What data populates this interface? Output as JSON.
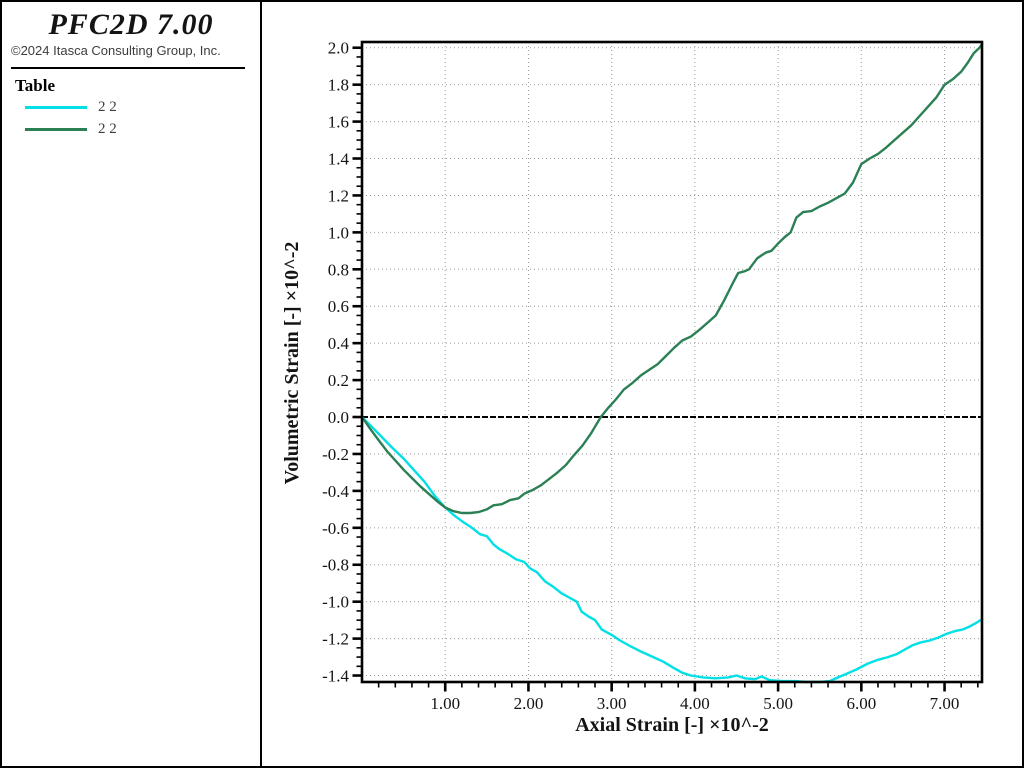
{
  "header": {
    "title": "PFC2D 7.00",
    "copyright": "©2024 Itasca Consulting Group, Inc."
  },
  "legend": {
    "heading": "Table",
    "items": [
      {
        "label": "2 2",
        "color": "#00e0e6"
      },
      {
        "label": "2 2",
        "color": "#2b8054"
      }
    ]
  },
  "colors": {
    "frame": "#000000",
    "grid": "#9a9a9a",
    "zero_line": "#000000",
    "background": "#ffffff"
  },
  "chart_data": {
    "type": "line",
    "title": "",
    "xlabel": "Axial Strain [-] ×10^-2",
    "ylabel": "Volumetric Strain [-] ×10^-2",
    "xlim": [
      0,
      7.45
    ],
    "ylim": [
      -1.435,
      2.031
    ],
    "grid": "dotted",
    "zero_line": true,
    "legend_position": "left-panel",
    "x_major_ticks": [
      1,
      2,
      3,
      4,
      5,
      6,
      7
    ],
    "x_tick_labels": [
      "1.00",
      "2.00",
      "3.00",
      "4.00",
      "5.00",
      "6.00",
      "7.00"
    ],
    "x_minor_step": 0.2,
    "y_major_ticks": [
      2.0,
      1.8,
      1.6,
      1.4,
      1.2,
      1.0,
      0.8,
      0.6,
      0.4,
      0.2,
      0.0,
      -0.2,
      -0.4,
      -0.6,
      -0.8,
      -1.0,
      -1.2,
      -1.4
    ],
    "y_tick_labels": [
      "2.0",
      "1.8",
      "1.6",
      "1.4",
      "1.2",
      "1.0",
      "0.8",
      "0.6",
      "0.4",
      "0.2",
      "0.0",
      "-0.2",
      "-0.4",
      "-0.6",
      "-0.8",
      "-1.0",
      "-1.2",
      "-1.4"
    ],
    "y_minor_step": 0.05,
    "series": [
      {
        "name": "2 2",
        "color": "#00e0e6",
        "points": [
          [
            0,
            0
          ],
          [
            0.1,
            -0.045
          ],
          [
            0.22,
            -0.1
          ],
          [
            0.35,
            -0.16
          ],
          [
            0.5,
            -0.225
          ],
          [
            0.62,
            -0.285
          ],
          [
            0.75,
            -0.35
          ],
          [
            0.88,
            -0.43
          ],
          [
            1,
            -0.49
          ],
          [
            1.1,
            -0.53
          ],
          [
            1.22,
            -0.57
          ],
          [
            1.32,
            -0.6
          ],
          [
            1.42,
            -0.635
          ],
          [
            1.5,
            -0.645
          ],
          [
            1.58,
            -0.69
          ],
          [
            1.65,
            -0.715
          ],
          [
            1.75,
            -0.74
          ],
          [
            1.85,
            -0.77
          ],
          [
            1.95,
            -0.785
          ],
          [
            2.02,
            -0.82
          ],
          [
            2.1,
            -0.84
          ],
          [
            2.2,
            -0.89
          ],
          [
            2.3,
            -0.92
          ],
          [
            2.4,
            -0.955
          ],
          [
            2.5,
            -0.98
          ],
          [
            2.58,
            -1
          ],
          [
            2.64,
            -1.055
          ],
          [
            2.72,
            -1.08
          ],
          [
            2.8,
            -1.1
          ],
          [
            2.88,
            -1.15
          ],
          [
            3,
            -1.18
          ],
          [
            3.1,
            -1.21
          ],
          [
            3.22,
            -1.24
          ],
          [
            3.35,
            -1.27
          ],
          [
            3.5,
            -1.3
          ],
          [
            3.62,
            -1.325
          ],
          [
            3.75,
            -1.36
          ],
          [
            3.85,
            -1.385
          ],
          [
            3.95,
            -1.4
          ],
          [
            4.1,
            -1.41
          ],
          [
            4.25,
            -1.415
          ],
          [
            4.4,
            -1.41
          ],
          [
            4.5,
            -1.4
          ],
          [
            4.6,
            -1.415
          ],
          [
            4.72,
            -1.42
          ],
          [
            4.8,
            -1.405
          ],
          [
            4.9,
            -1.425
          ],
          [
            5.05,
            -1.43
          ],
          [
            5.2,
            -1.43
          ],
          [
            5.35,
            -1.435
          ],
          [
            5.5,
            -1.435
          ],
          [
            5.62,
            -1.43
          ],
          [
            5.72,
            -1.41
          ],
          [
            5.85,
            -1.385
          ],
          [
            5.95,
            -1.365
          ],
          [
            6.08,
            -1.335
          ],
          [
            6.2,
            -1.315
          ],
          [
            6.32,
            -1.3
          ],
          [
            6.42,
            -1.285
          ],
          [
            6.52,
            -1.26
          ],
          [
            6.62,
            -1.235
          ],
          [
            6.72,
            -1.22
          ],
          [
            6.82,
            -1.21
          ],
          [
            6.92,
            -1.195
          ],
          [
            7.02,
            -1.175
          ],
          [
            7.12,
            -1.16
          ],
          [
            7.22,
            -1.15
          ],
          [
            7.3,
            -1.135
          ],
          [
            7.38,
            -1.115
          ],
          [
            7.45,
            -1.095
          ]
        ]
      },
      {
        "name": "2 2",
        "color": "#2b8054",
        "points": [
          [
            0,
            0
          ],
          [
            0.1,
            -0.065
          ],
          [
            0.2,
            -0.125
          ],
          [
            0.3,
            -0.185
          ],
          [
            0.4,
            -0.235
          ],
          [
            0.5,
            -0.285
          ],
          [
            0.6,
            -0.33
          ],
          [
            0.7,
            -0.375
          ],
          [
            0.8,
            -0.415
          ],
          [
            0.9,
            -0.455
          ],
          [
            1,
            -0.49
          ],
          [
            1.1,
            -0.51
          ],
          [
            1.2,
            -0.52
          ],
          [
            1.3,
            -0.52
          ],
          [
            1.4,
            -0.515
          ],
          [
            1.5,
            -0.5
          ],
          [
            1.58,
            -0.478
          ],
          [
            1.68,
            -0.472
          ],
          [
            1.78,
            -0.45
          ],
          [
            1.88,
            -0.44
          ],
          [
            1.95,
            -0.415
          ],
          [
            2.05,
            -0.395
          ],
          [
            2.15,
            -0.37
          ],
          [
            2.25,
            -0.335
          ],
          [
            2.35,
            -0.3
          ],
          [
            2.45,
            -0.26
          ],
          [
            2.55,
            -0.205
          ],
          [
            2.65,
            -0.155
          ],
          [
            2.75,
            -0.09
          ],
          [
            2.87,
            0
          ],
          [
            2.95,
            0.045
          ],
          [
            3.05,
            0.095
          ],
          [
            3.15,
            0.15
          ],
          [
            3.25,
            0.185
          ],
          [
            3.35,
            0.225
          ],
          [
            3.45,
            0.255
          ],
          [
            3.55,
            0.285
          ],
          [
            3.65,
            0.33
          ],
          [
            3.75,
            0.375
          ],
          [
            3.85,
            0.415
          ],
          [
            3.95,
            0.435
          ],
          [
            4.05,
            0.47
          ],
          [
            4.15,
            0.51
          ],
          [
            4.25,
            0.55
          ],
          [
            4.35,
            0.63
          ],
          [
            4.45,
            0.72
          ],
          [
            4.52,
            0.78
          ],
          [
            4.6,
            0.79
          ],
          [
            4.65,
            0.8
          ],
          [
            4.75,
            0.86
          ],
          [
            4.85,
            0.89
          ],
          [
            4.92,
            0.9
          ],
          [
            5,
            0.94
          ],
          [
            5.08,
            0.975
          ],
          [
            5.15,
            1
          ],
          [
            5.22,
            1.08
          ],
          [
            5.3,
            1.11
          ],
          [
            5.4,
            1.115
          ],
          [
            5.5,
            1.14
          ],
          [
            5.6,
            1.16
          ],
          [
            5.7,
            1.185
          ],
          [
            5.8,
            1.21
          ],
          [
            5.9,
            1.27
          ],
          [
            6,
            1.37
          ],
          [
            6.1,
            1.4
          ],
          [
            6.2,
            1.425
          ],
          [
            6.3,
            1.46
          ],
          [
            6.4,
            1.5
          ],
          [
            6.5,
            1.54
          ],
          [
            6.6,
            1.58
          ],
          [
            6.7,
            1.63
          ],
          [
            6.8,
            1.68
          ],
          [
            6.9,
            1.73
          ],
          [
            7,
            1.8
          ],
          [
            7.1,
            1.83
          ],
          [
            7.2,
            1.87
          ],
          [
            7.28,
            1.92
          ],
          [
            7.35,
            1.97
          ],
          [
            7.42,
            2
          ],
          [
            7.45,
            2.02
          ]
        ]
      }
    ]
  }
}
